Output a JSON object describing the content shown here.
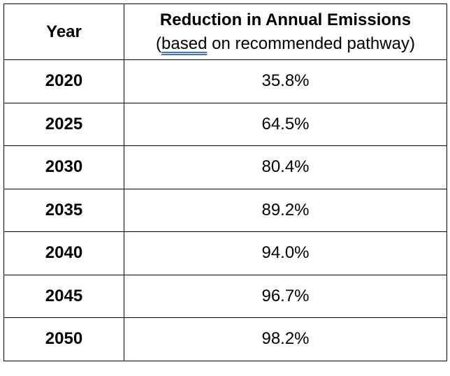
{
  "table": {
    "header": {
      "year_label": "Year",
      "reduction_title": "Reduction in Annual Emissions",
      "subtitle_open": "(",
      "subtitle_underlined": "based",
      "subtitle_rest": " on recommended pathway)"
    },
    "rows": [
      {
        "year": "2020",
        "value": "35.8%"
      },
      {
        "year": "2025",
        "value": "64.5%"
      },
      {
        "year": "2030",
        "value": "80.4%"
      },
      {
        "year": "2035",
        "value": "89.2%"
      },
      {
        "year": "2040",
        "value": "94.0%"
      },
      {
        "year": "2045",
        "value": "96.7%"
      },
      {
        "year": "2050",
        "value": "98.2%"
      }
    ]
  }
}
